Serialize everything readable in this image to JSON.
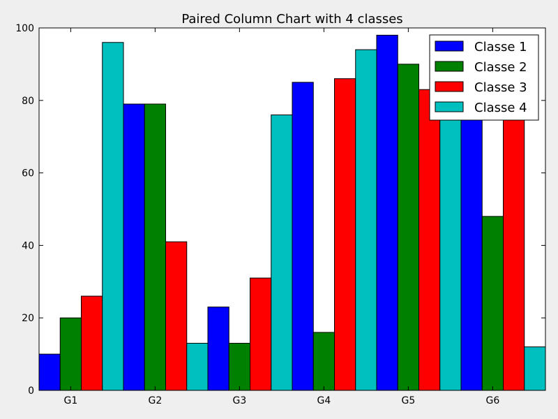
{
  "chart_data": {
    "type": "bar",
    "title": "Paired Column Chart with 4 classes",
    "xlabel": "",
    "ylabel": "",
    "ylim": [
      0,
      100
    ],
    "yticks": [
      0,
      20,
      40,
      60,
      80,
      100
    ],
    "categories": [
      "G1",
      "G2",
      "G3",
      "G4",
      "G5",
      "G6"
    ],
    "grid": false,
    "legend_position": "top-right",
    "series": [
      {
        "name": "Classe 1",
        "color": "#0000ff",
        "values": [
          10,
          79,
          23,
          85,
          98,
          80
        ]
      },
      {
        "name": "Classe 2",
        "color": "#008000",
        "values": [
          20,
          79,
          13,
          16,
          90,
          48
        ]
      },
      {
        "name": "Classe 3",
        "color": "#ff0000",
        "values": [
          26,
          41,
          31,
          86,
          83,
          80
        ]
      },
      {
        "name": "Classe 4",
        "color": "#00bfbf",
        "values": [
          96,
          13,
          76,
          94,
          80,
          12
        ]
      }
    ]
  }
}
